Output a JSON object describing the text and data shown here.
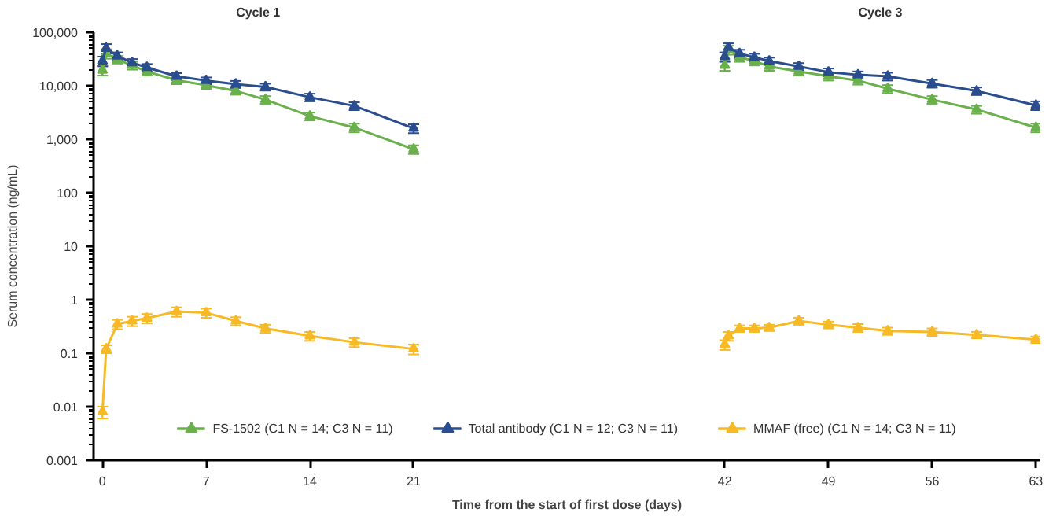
{
  "chart_data": {
    "type": "line",
    "xlabel": "Time from the start of first dose (days)",
    "ylabel": "Serum concentration (ng/mL)",
    "annotations": [
      "Cycle 1",
      "Cycle 3"
    ],
    "log": "y",
    "grid": false,
    "legend": "bottom",
    "marker": "triangle",
    "line_style": "solid",
    "xlim": [
      -0.6,
      63.3
    ],
    "xticks": [
      0,
      7,
      14,
      21,
      42,
      49,
      56,
      63
    ],
    "ylim": [
      0.001,
      100000
    ],
    "yticks": [
      {
        "value": 0.001,
        "label": "0.001"
      },
      {
        "value": 0.01,
        "label": "0.01"
      },
      {
        "value": 0.1,
        "label": "0.1"
      },
      1,
      10,
      100,
      {
        "value": 1000,
        "label": "1,000"
      },
      {
        "value": 10000,
        "label": "10,000"
      },
      {
        "value": 100000,
        "label": "100,000"
      }
    ],
    "series": [
      {
        "name": "FS-1502 (C1 N = 14; C3 N = 11)",
        "color": "#6ab04c",
        "x": [
          0,
          0.25,
          1,
          2,
          3,
          5,
          7,
          9,
          11,
          14,
          17,
          21,
          null,
          42,
          42.25,
          43,
          44,
          45,
          47,
          49,
          51,
          53,
          56,
          59,
          63
        ],
        "values": [
          19500,
          40000,
          31000,
          24000,
          18500,
          12700,
          10200,
          8000,
          5500,
          2700,
          1650,
          650,
          null,
          24000,
          47000,
          34000,
          29000,
          23000,
          18500,
          15000,
          12500,
          8800,
          5500,
          3600,
          1650
        ],
        "errors": [
          4000,
          8000,
          5000,
          4000,
          3000,
          2000,
          1500,
          1200,
          900,
          450,
          300,
          120,
          null,
          5000,
          9000,
          6000,
          5000,
          4000,
          3000,
          2500,
          2000,
          1500,
          900,
          600,
          300
        ]
      },
      {
        "name": "Total antibody (C1 N = 12; C3 N = 11)",
        "color": "#2a4d8f",
        "x": [
          0,
          0.25,
          1,
          2,
          3,
          5,
          7,
          9,
          11,
          14,
          17,
          21,
          null,
          42,
          42.25,
          43,
          44,
          45,
          47,
          49,
          51,
          53,
          56,
          59,
          63
        ],
        "values": [
          29000,
          50000,
          36000,
          27000,
          22000,
          15000,
          12500,
          10700,
          9500,
          6100,
          4200,
          1600,
          null,
          35000,
          52000,
          40000,
          34000,
          29000,
          23000,
          18000,
          16000,
          15000,
          11000,
          8000,
          4300
        ],
        "errors": [
          6000,
          10000,
          6000,
          4500,
          3500,
          2200,
          1800,
          1600,
          1400,
          1000,
          700,
          300,
          null,
          7000,
          10000,
          7000,
          5500,
          4500,
          3500,
          3000,
          2500,
          2500,
          1800,
          1300,
          800
        ]
      },
      {
        "name": "MMAF (free) (C1 N = 14; C3 N = 11)",
        "color": "#f7b924",
        "x": [
          0,
          0.25,
          1,
          2,
          3,
          5,
          7,
          9,
          11,
          14,
          17,
          21,
          null,
          42,
          42.25,
          43,
          44,
          45,
          47,
          49,
          51,
          53,
          56,
          59,
          63
        ],
        "values": [
          0.008,
          0.12,
          0.35,
          0.4,
          0.45,
          0.6,
          0.57,
          0.4,
          0.29,
          0.21,
          0.16,
          0.12,
          null,
          0.145,
          0.21,
          0.29,
          0.29,
          0.3,
          0.4,
          0.34,
          0.3,
          0.26,
          0.25,
          0.22,
          0.18
        ],
        "errors": [
          0.002,
          0.02,
          0.07,
          0.08,
          0.09,
          0.12,
          0.11,
          0.07,
          0.05,
          0.04,
          0.03,
          0.025,
          null,
          0.03,
          0.04,
          0.04,
          0.04,
          0.04,
          0.06,
          0.05,
          0.05,
          0.04,
          0.04,
          0.03,
          0.025
        ]
      }
    ]
  }
}
